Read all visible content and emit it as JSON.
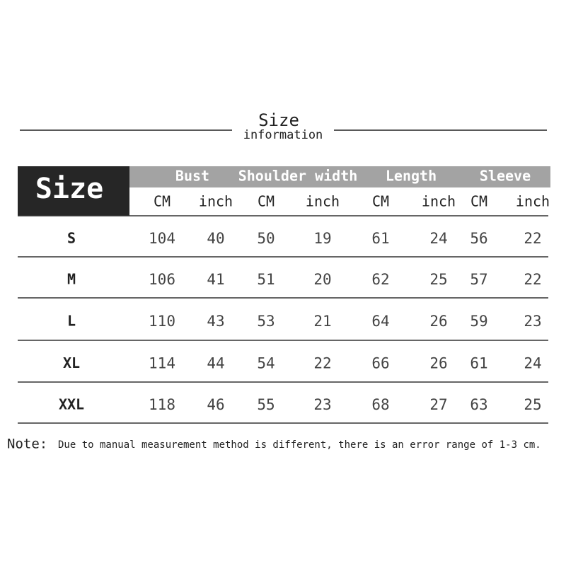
{
  "header": {
    "title": "Size",
    "subtitle": "information"
  },
  "table": {
    "corner": "Size",
    "groups": [
      "Bust",
      "Shoulder width",
      "Length",
      "Sleeve"
    ],
    "units": [
      "CM",
      "inch",
      "CM",
      "inch",
      "CM",
      "inch",
      "CM",
      "inch"
    ],
    "rows": [
      [
        "S",
        104,
        40,
        50,
        19,
        61,
        24,
        56,
        22
      ],
      [
        "M",
        106,
        41,
        51,
        20,
        62,
        25,
        57,
        22
      ],
      [
        "L",
        110,
        43,
        53,
        21,
        64,
        26,
        59,
        23
      ],
      [
        "XL",
        114,
        44,
        54,
        22,
        66,
        26,
        61,
        24
      ],
      [
        "XXL",
        118,
        46,
        55,
        23,
        68,
        27,
        63,
        25
      ]
    ]
  },
  "note": {
    "label": "Note:",
    "text": "Due to manual measurement method is different, there is an error range of 1-3 cm."
  }
}
